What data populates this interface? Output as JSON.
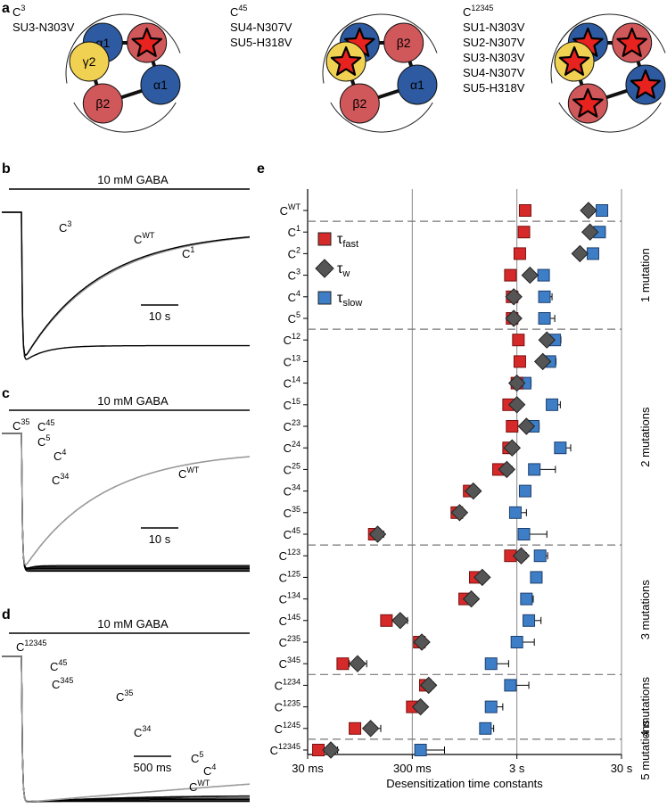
{
  "panel_letters": {
    "a": "a",
    "b": "b",
    "c": "c",
    "d": "d",
    "e": "e"
  },
  "panel_a": {
    "constructs": [
      {
        "name_base": "C",
        "name_sup": "3",
        "mutations": [
          "SU3-N303V"
        ],
        "subunits": [
          {
            "label": "α1",
            "color": "#2d5aa0",
            "star": false
          },
          {
            "label": "",
            "color": "#d0575a",
            "star": true
          },
          {
            "label": "α1",
            "color": "#2d5aa0",
            "star": false
          },
          {
            "label": "β2",
            "color": "#d0575a",
            "star": false
          },
          {
            "label": "γ2",
            "color": "#f1d152",
            "star": false
          }
        ]
      },
      {
        "name_base": "C",
        "name_sup": "45",
        "mutations": [
          "SU4-N307V",
          "SU5-H318V"
        ],
        "subunits": [
          {
            "label": "",
            "color": "#2d5aa0",
            "star": true
          },
          {
            "label": "β2",
            "color": "#d0575a",
            "star": false
          },
          {
            "label": "α1",
            "color": "#2d5aa0",
            "star": false
          },
          {
            "label": "β2",
            "color": "#d0575a",
            "star": false
          },
          {
            "label": "",
            "color": "#f1d152",
            "star": true
          }
        ]
      },
      {
        "name_base": "C",
        "name_sup": "12345",
        "mutations": [
          "SU1-N303V",
          "SU2-N307V",
          "SU3-N303V",
          "SU4-N307V",
          "SU5-H318V"
        ],
        "subunits": [
          {
            "label": "",
            "color": "#2d5aa0",
            "star": true
          },
          {
            "label": "",
            "color": "#d0575a",
            "star": true
          },
          {
            "label": "",
            "color": "#2d5aa0",
            "star": true
          },
          {
            "label": "",
            "color": "#d0575a",
            "star": true
          },
          {
            "label": "",
            "color": "#f1d152",
            "star": true
          }
        ]
      }
    ]
  },
  "panel_b": {
    "stimulus": "10 mM GABA",
    "scale_bar": "10 s",
    "traces": [
      {
        "base": "C",
        "sup": "3",
        "color": "#000000",
        "tau_rel": 0.09
      },
      {
        "base": "C",
        "sup": "WT",
        "color": "#999999",
        "tau_rel": 0.34
      },
      {
        "base": "C",
        "sup": "1",
        "color": "#000000",
        "tau_rel": 0.33
      }
    ]
  },
  "panel_c": {
    "stimulus": "10 mM GABA",
    "scale_bar": "10 s",
    "traces": [
      {
        "base": "C",
        "sup": "35",
        "color": "#000000",
        "tau_rel": 0.004
      },
      {
        "base": "C",
        "sup": "45",
        "color": "#000000",
        "tau_rel": 0.002
      },
      {
        "base": "C",
        "sup": "5",
        "color": "#000000",
        "tau_rel": 0.012
      },
      {
        "base": "C",
        "sup": "4",
        "color": "#000000",
        "tau_rel": 0.018
      },
      {
        "base": "C",
        "sup": "34",
        "color": "#000000",
        "tau_rel": 0.03
      },
      {
        "base": "C",
        "sup": "WT",
        "color": "#999999",
        "tau_rel": 0.34
      }
    ]
  },
  "panel_d": {
    "stimulus": "10 mM GABA",
    "scale_bar": "500 ms",
    "traces": [
      {
        "base": "C",
        "sup": "12345",
        "color": "#000000",
        "tau_rel": 0.02
      },
      {
        "base": "C",
        "sup": "45",
        "color": "#000000",
        "tau_rel": 0.04
      },
      {
        "base": "C",
        "sup": "345",
        "color": "#000000",
        "tau_rel": 0.06
      },
      {
        "base": "C",
        "sup": "35",
        "color": "#000000",
        "tau_rel": 0.12
      },
      {
        "base": "C",
        "sup": "34",
        "color": "#000000",
        "tau_rel": 0.2
      },
      {
        "base": "C",
        "sup": "5",
        "color": "#000000",
        "tau_rel": 0.42
      },
      {
        "base": "C",
        "sup": "4",
        "color": "#000000",
        "tau_rel": 0.44
      },
      {
        "base": "C",
        "sup": "WT",
        "color": "#999999",
        "tau_rel": 5.0
      }
    ]
  },
  "chart_data": {
    "type": "scatter",
    "xlabel": "Desensitization time constants",
    "x_scale": "log",
    "xlim_s": [
      0.03,
      30
    ],
    "x_ticks": [
      {
        "value_s": 0.03,
        "label": "30 ms"
      },
      {
        "value_s": 0.3,
        "label": "300 ms"
      },
      {
        "value_s": 3,
        "label": "3 s"
      },
      {
        "value_s": 30,
        "label": "30 s"
      }
    ],
    "legend": {
      "placement": "top-left",
      "entries": [
        {
          "symbol": "square",
          "color": "#d62a2a",
          "base": "τ",
          "sub": "fast"
        },
        {
          "symbol": "diamond",
          "color": "#555555",
          "base": "τ",
          "sub": "w"
        },
        {
          "symbol": "square",
          "color": "#3d7ec6",
          "base": "τ",
          "sub": "slow"
        }
      ]
    },
    "colors": {
      "fast": "#d62a2a",
      "w": "#555555",
      "slow": "#3d7ec6"
    },
    "groups": [
      {
        "label": "1 mutation",
        "from": 1,
        "to": 5
      },
      {
        "label": "2 mutations",
        "from": 6,
        "to": 15
      },
      {
        "label": "3 mutations",
        "from": 16,
        "to": 21
      },
      {
        "label": "4 mutations",
        "from": 22,
        "to": 24
      },
      {
        "label": "5 mutations",
        "from": 25,
        "to": 25
      }
    ],
    "rows": [
      {
        "base": "C",
        "sup": "WT",
        "fast": 3.6,
        "fast_err": 0.4,
        "w": 14.5,
        "w_err": 1.5,
        "slow": 19.5,
        "slow_err": 2.5
      },
      {
        "base": "C",
        "sup": "1",
        "fast": 3.5,
        "fast_err": 0.3,
        "w": 15.0,
        "w_err": 1.5,
        "slow": 18.5,
        "slow_err": 2.5
      },
      {
        "base": "C",
        "sup": "2",
        "fast": 3.2,
        "fast_err": 0.3,
        "w": 12.0,
        "w_err": 1.2,
        "slow": 16.0,
        "slow_err": 2.0
      },
      {
        "base": "C",
        "sup": "3",
        "fast": 2.6,
        "fast_err": 0.3,
        "w": 4.0,
        "w_err": 0.4,
        "slow": 5.4,
        "slow_err": 0.7
      },
      {
        "base": "C",
        "sup": "4",
        "fast": 2.7,
        "fast_err": 0.3,
        "w": 2.8,
        "w_err": 0.3,
        "slow": 5.5,
        "slow_err": 1.0
      },
      {
        "base": "C",
        "sup": "5",
        "fast": 2.7,
        "fast_err": 0.4,
        "w": 2.8,
        "w_err": 0.3,
        "slow": 5.5,
        "slow_err": 1.4
      },
      {
        "base": "C",
        "sup": "12",
        "fast": 3.1,
        "fast_err": 0.3,
        "w": 5.8,
        "w_err": 0.6,
        "slow": 6.9,
        "slow_err": 1.0
      },
      {
        "base": "C",
        "sup": "13",
        "fast": 3.2,
        "fast_err": 0.3,
        "w": 5.3,
        "w_err": 0.6,
        "slow": 6.2,
        "slow_err": 0.9
      },
      {
        "base": "C",
        "sup": "14",
        "fast": 3.0,
        "fast_err": 0.3,
        "w": 3.0,
        "w_err": 0.3,
        "slow": 3.6,
        "slow_err": 0.5
      },
      {
        "base": "C",
        "sup": "15",
        "fast": 2.5,
        "fast_err": 0.3,
        "w": 3.0,
        "w_err": 0.3,
        "slow": 6.5,
        "slow_err": 1.3
      },
      {
        "base": "C",
        "sup": "23",
        "fast": 2.7,
        "fast_err": 0.3,
        "w": 3.7,
        "w_err": 0.4,
        "slow": 4.3,
        "slow_err": 0.6
      },
      {
        "base": "C",
        "sup": "24",
        "fast": 2.5,
        "fast_err": 0.3,
        "w": 2.7,
        "w_err": 0.3,
        "slow": 7.8,
        "slow_err": 2.0
      },
      {
        "base": "C",
        "sup": "25",
        "fast": 2.0,
        "fast_err": 0.3,
        "w": 2.4,
        "w_err": 0.3,
        "slow": 4.4,
        "slow_err": 2.6
      },
      {
        "base": "C",
        "sup": "34",
        "fast": 1.05,
        "fast_err": 0.12,
        "w": 1.15,
        "w_err": 0.12,
        "slow": 3.6,
        "slow_err": 0.4
      },
      {
        "base": "C",
        "sup": "35",
        "fast": 0.8,
        "fast_err": 0.1,
        "w": 0.85,
        "w_err": 0.1,
        "slow": 2.9,
        "slow_err": 0.8
      },
      {
        "base": "C",
        "sup": "45",
        "fast": 0.13,
        "fast_err": 0.02,
        "w": 0.14,
        "w_err": 0.02,
        "slow": 3.5,
        "slow_err": 2.3
      },
      {
        "base": "C",
        "sup": "123",
        "fast": 2.6,
        "fast_err": 0.4,
        "w": 3.3,
        "w_err": 0.4,
        "slow": 5.0,
        "slow_err": 0.9
      },
      {
        "base": "C",
        "sup": "125",
        "fast": 1.2,
        "fast_err": 0.15,
        "w": 1.4,
        "w_err": 0.15,
        "slow": 4.6,
        "slow_err": 0.6
      },
      {
        "base": "C",
        "sup": "134",
        "fast": 0.95,
        "fast_err": 0.12,
        "w": 1.1,
        "w_err": 0.12,
        "slow": 3.7,
        "slow_err": 0.6
      },
      {
        "base": "C",
        "sup": "145",
        "fast": 0.17,
        "fast_err": 0.02,
        "w": 0.23,
        "w_err": 0.04,
        "slow": 3.9,
        "slow_err": 1.2
      },
      {
        "base": "C",
        "sup": "235",
        "fast": 0.35,
        "fast_err": 0.04,
        "w": 0.37,
        "w_err": 0.04,
        "slow": 3.0,
        "slow_err": 1.4
      },
      {
        "base": "C",
        "sup": "345",
        "fast": 0.065,
        "fast_err": 0.01,
        "w": 0.09,
        "w_err": 0.02,
        "slow": 1.7,
        "slow_err": 0.8
      },
      {
        "base": "C",
        "sup": "1234",
        "fast": 0.4,
        "fast_err": 0.05,
        "w": 0.43,
        "w_err": 0.05,
        "slow": 2.6,
        "slow_err": 1.3
      },
      {
        "base": "C",
        "sup": "1235",
        "fast": 0.3,
        "fast_err": 0.04,
        "w": 0.36,
        "w_err": 0.04,
        "slow": 1.7,
        "slow_err": 0.5
      },
      {
        "base": "C",
        "sup": "1245",
        "fast": 0.085,
        "fast_err": 0.01,
        "w": 0.12,
        "w_err": 0.03,
        "slow": 1.5,
        "slow_err": 0.3
      },
      {
        "base": "C",
        "sup": "12345",
        "fast": 0.038,
        "fast_err": 0.005,
        "w": 0.05,
        "w_err": 0.008,
        "slow": 0.36,
        "slow_err": 0.25
      }
    ]
  }
}
